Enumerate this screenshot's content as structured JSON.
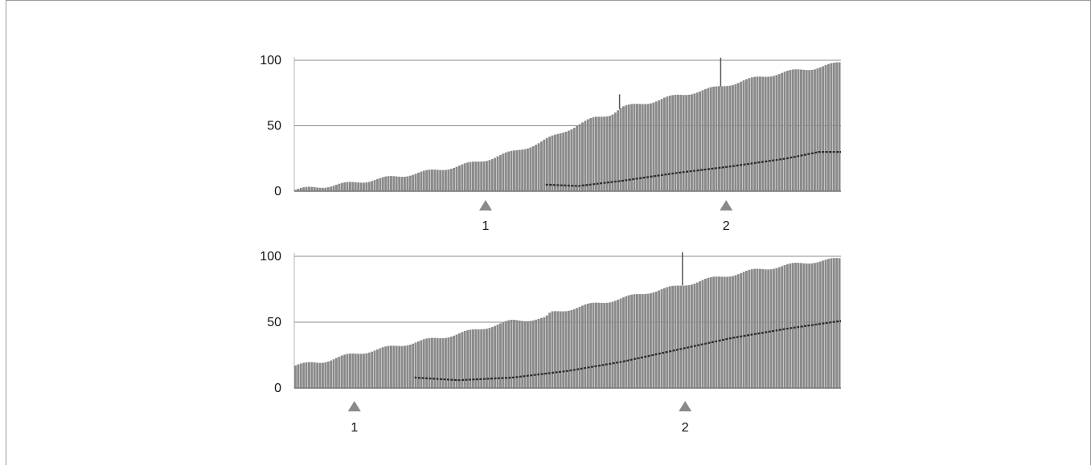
{
  "colors": {
    "bar": "#8a8a8a",
    "bar_edge": "#6f6f6f",
    "line": "#2b2b2b",
    "grid": "#8c8c8c",
    "marker": "#8a8a8a",
    "background": "#ffffff"
  },
  "chart_data": [
    {
      "type": "bar",
      "ylim": [
        0,
        100
      ],
      "yticks": [
        "0",
        "50",
        "100"
      ],
      "ytick_values": [
        0,
        50,
        100
      ],
      "grid": true,
      "xlim": [
        0,
        100
      ],
      "bar_count": 200,
      "bar_profile": [
        {
          "x": 0,
          "y": 1
        },
        {
          "x": 10,
          "y": 6
        },
        {
          "x": 20,
          "y": 12
        },
        {
          "x": 30,
          "y": 19
        },
        {
          "x": 35,
          "y": 24
        },
        {
          "x": 40,
          "y": 30
        },
        {
          "x": 45,
          "y": 37
        },
        {
          "x": 50,
          "y": 47
        },
        {
          "x": 55,
          "y": 56
        },
        {
          "x": 58,
          "y": 59
        },
        {
          "x": 60,
          "y": 64
        },
        {
          "x": 65,
          "y": 68
        },
        {
          "x": 70,
          "y": 73
        },
        {
          "x": 75,
          "y": 77
        },
        {
          "x": 80,
          "y": 82
        },
        {
          "x": 85,
          "y": 87
        },
        {
          "x": 90,
          "y": 91
        },
        {
          "x": 95,
          "y": 94
        },
        {
          "x": 100,
          "y": 98
        }
      ],
      "spikes": [
        {
          "x": 59.5,
          "y": 74
        },
        {
          "x": 78,
          "y": 102
        }
      ],
      "line_series": [
        {
          "x": 46,
          "y": 5
        },
        {
          "x": 52,
          "y": 4
        },
        {
          "x": 60,
          "y": 8
        },
        {
          "x": 70,
          "y": 14
        },
        {
          "x": 80,
          "y": 19
        },
        {
          "x": 90,
          "y": 25
        },
        {
          "x": 96,
          "y": 30
        },
        {
          "x": 100,
          "y": 30
        }
      ],
      "markers": [
        {
          "x": 35,
          "label": "1"
        },
        {
          "x": 79,
          "label": "2"
        }
      ]
    },
    {
      "type": "bar",
      "ylim": [
        0,
        100
      ],
      "yticks": [
        "0",
        "50",
        "100"
      ],
      "ytick_values": [
        0,
        50,
        100
      ],
      "grid": true,
      "xlim": [
        0,
        100
      ],
      "bar_count": 200,
      "bar_profile": [
        {
          "x": 0,
          "y": 17
        },
        {
          "x": 5,
          "y": 20
        },
        {
          "x": 10,
          "y": 25
        },
        {
          "x": 20,
          "y": 33
        },
        {
          "x": 30,
          "y": 41
        },
        {
          "x": 35,
          "y": 46
        },
        {
          "x": 40,
          "y": 51
        },
        {
          "x": 46,
          "y": 53
        },
        {
          "x": 47,
          "y": 57
        },
        {
          "x": 55,
          "y": 64
        },
        {
          "x": 60,
          "y": 68
        },
        {
          "x": 65,
          "y": 73
        },
        {
          "x": 70,
          "y": 77
        },
        {
          "x": 75,
          "y": 82
        },
        {
          "x": 80,
          "y": 86
        },
        {
          "x": 85,
          "y": 90
        },
        {
          "x": 90,
          "y": 93
        },
        {
          "x": 95,
          "y": 96
        },
        {
          "x": 100,
          "y": 98
        }
      ],
      "spikes": [
        {
          "x": 71,
          "y": 103
        }
      ],
      "line_series": [
        {
          "x": 22,
          "y": 8
        },
        {
          "x": 30,
          "y": 6
        },
        {
          "x": 40,
          "y": 8
        },
        {
          "x": 50,
          "y": 13
        },
        {
          "x": 60,
          "y": 20
        },
        {
          "x": 70,
          "y": 29
        },
        {
          "x": 80,
          "y": 38
        },
        {
          "x": 90,
          "y": 45
        },
        {
          "x": 100,
          "y": 51
        }
      ],
      "markers": [
        {
          "x": 11,
          "label": "1"
        },
        {
          "x": 71.5,
          "label": "2"
        }
      ]
    }
  ]
}
